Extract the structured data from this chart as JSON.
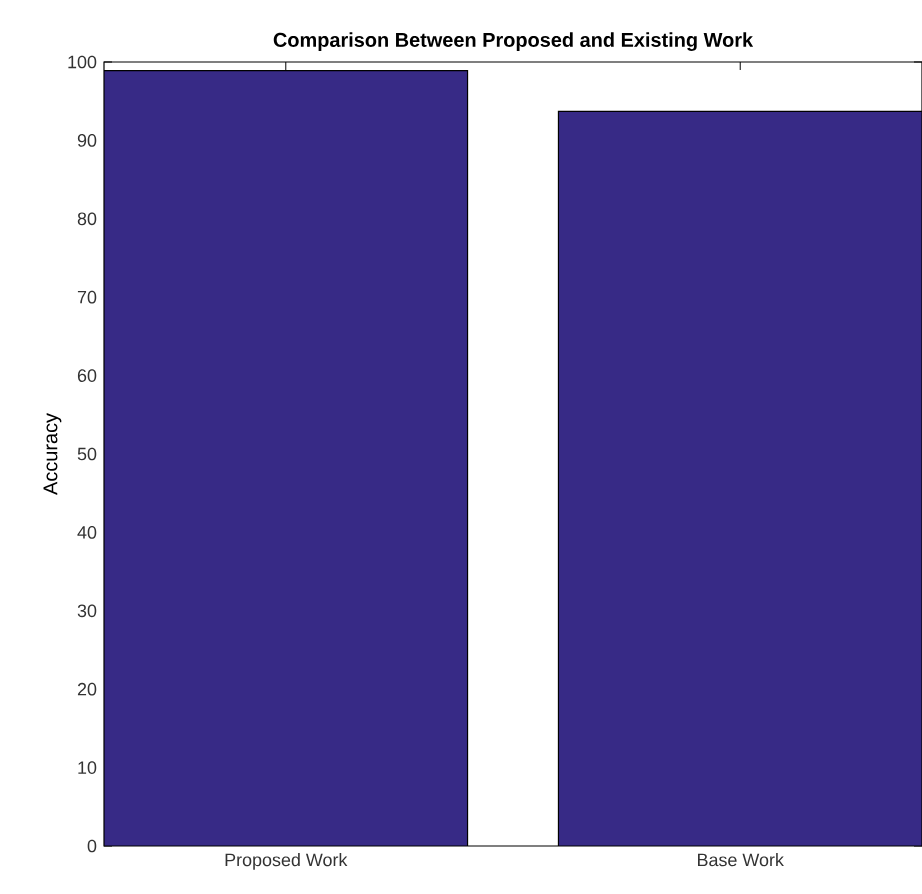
{
  "chart_data": {
    "type": "bar",
    "title": "Comparison Between Proposed and Existing Work",
    "ylabel": "Accuracy",
    "categories": [
      "Proposed Work",
      "Base Work"
    ],
    "values": [
      98.9,
      93.7
    ],
    "color": "#372a86",
    "ylim": [
      0,
      100
    ],
    "yticks": [
      0,
      10,
      20,
      30,
      40,
      50,
      60,
      70,
      80,
      90,
      100
    ],
    "grid": false
  }
}
